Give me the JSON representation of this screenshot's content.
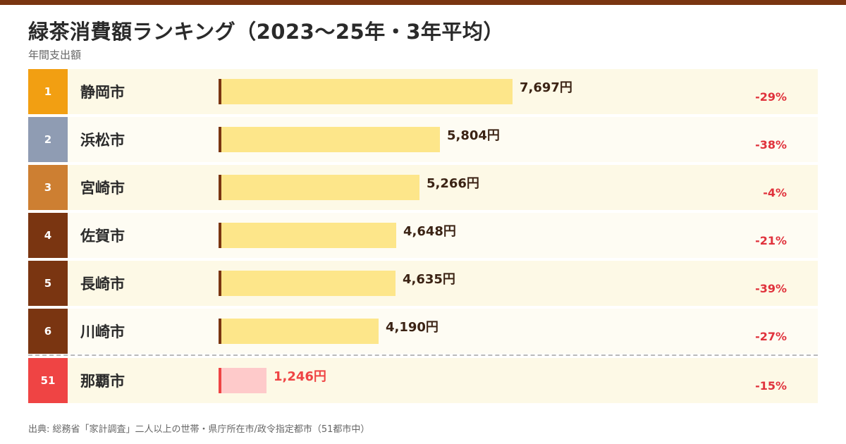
{
  "title": "緑茶消費額ランキング（2023〜25年・3年平均）",
  "subtitle": "年間支出額",
  "source": "出典: 総務省「家計調査」二人以上の世帯・県庁所在市/政令指定都市（51都市中）",
  "colors": {
    "top_bar": "#7a3511",
    "rank1": "#f29f12",
    "rank2": "#8f9cb3",
    "rank3": "#cd7f32",
    "rank_other": "#7a3511",
    "rank_highlight": "#ef4444",
    "bar": "#fde68a",
    "bar_edge": "#7a3511",
    "bar_highlight": "#fecaca",
    "bar_edge_highlight": "#ef4444",
    "change": "#e0323c"
  },
  "chart_data": {
    "type": "bar",
    "orientation": "horizontal",
    "title": "緑茶消費額ランキング（2023〜25年・3年平均）",
    "ylabel": "年間支出額",
    "unit": "円",
    "xlim": [
      0,
      7697
    ],
    "rows": [
      {
        "rank": "1",
        "city": "静岡市",
        "value": 7697,
        "value_label": "7,697円",
        "change": "-29%"
      },
      {
        "rank": "2",
        "city": "浜松市",
        "value": 5804,
        "value_label": "5,804円",
        "change": "-38%"
      },
      {
        "rank": "3",
        "city": "宮崎市",
        "value": 5266,
        "value_label": "5,266円",
        "change": "-4%"
      },
      {
        "rank": "4",
        "city": "佐賀市",
        "value": 4648,
        "value_label": "4,648円",
        "change": "-21%"
      },
      {
        "rank": "5",
        "city": "長崎市",
        "value": 4635,
        "value_label": "4,635円",
        "change": "-39%"
      },
      {
        "rank": "6",
        "city": "川崎市",
        "value": 4190,
        "value_label": "4,190円",
        "change": "-27%"
      },
      {
        "rank": "51",
        "city": "那覇市",
        "value": 1246,
        "value_label": "1,246円",
        "change": "-15%",
        "highlight": true
      }
    ]
  }
}
